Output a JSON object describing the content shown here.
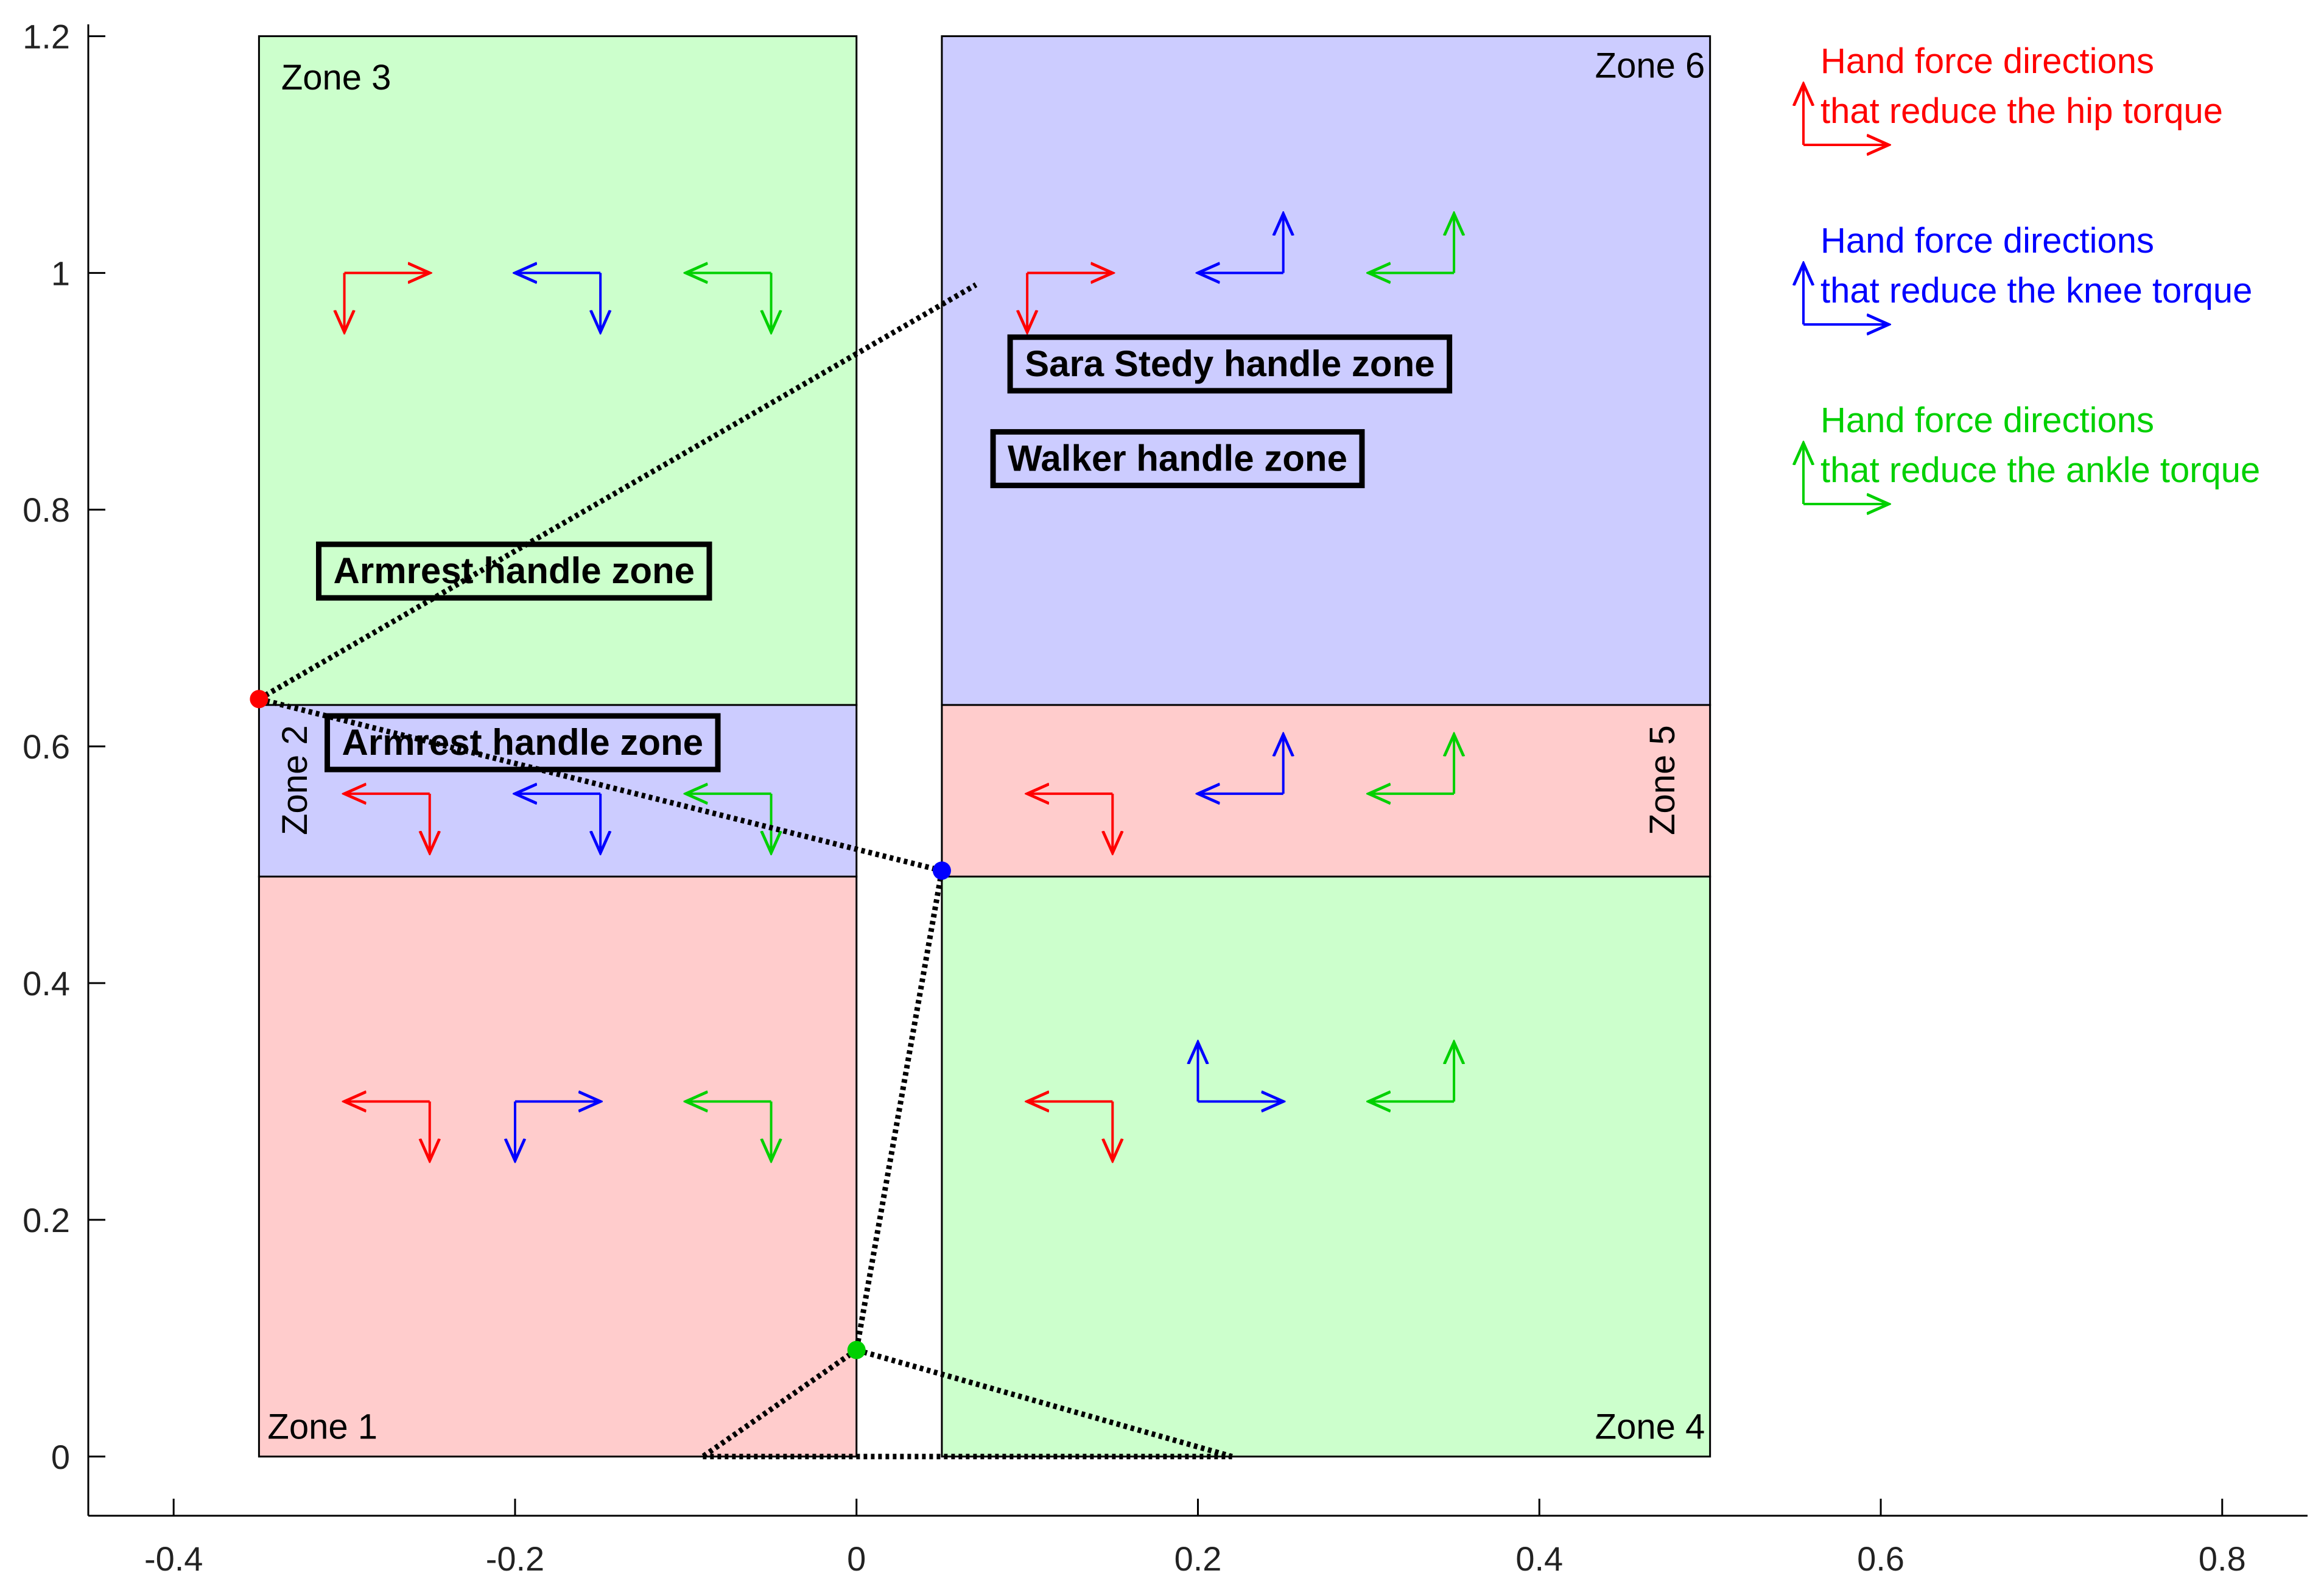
{
  "chart_data": {
    "type": "scatter",
    "xlim": [
      -0.45,
      0.85
    ],
    "ylim": [
      -0.05,
      1.21
    ],
    "x_ticks": [
      -0.4,
      -0.2,
      0,
      0.2,
      0.4,
      0.6,
      0.8
    ],
    "x_tick_labels": [
      "-0.4",
      "-0.2",
      "0",
      "0.2",
      "0.4",
      "0.6",
      "0.8"
    ],
    "y_ticks": [
      0,
      0.2,
      0.4,
      0.6,
      0.8,
      1,
      1.2
    ],
    "y_tick_labels": [
      "0",
      "0.2",
      "0.4",
      "0.6",
      "0.8",
      "1",
      "1.2"
    ],
    "grid": false,
    "colors": {
      "hip": "#ff0000",
      "knee": "#0000ff",
      "ankle": "#00d000",
      "green_fill": "#ccffcc",
      "blue_fill": "#ccccff",
      "red_fill": "#ffcccc"
    },
    "zones": [
      {
        "name": "Zone 1",
        "x": [
          -0.35,
          0.0
        ],
        "y": [
          0.0,
          0.49
        ],
        "fill": "red_fill"
      },
      {
        "name": "Zone 2",
        "x": [
          -0.35,
          0.0
        ],
        "y": [
          0.49,
          0.635
        ],
        "fill": "blue_fill"
      },
      {
        "name": "Zone 3",
        "x": [
          -0.35,
          0.0
        ],
        "y": [
          0.635,
          1.2
        ],
        "fill": "green_fill"
      },
      {
        "name": "Zone 4",
        "x": [
          0.05,
          0.5
        ],
        "y": [
          0.0,
          0.49
        ],
        "fill": "green_fill"
      },
      {
        "name": "Zone 5",
        "x": [
          0.05,
          0.5
        ],
        "y": [
          0.49,
          0.635
        ],
        "fill": "red_fill"
      },
      {
        "name": "Zone 6",
        "x": [
          0.05,
          0.5
        ],
        "y": [
          0.635,
          1.2
        ],
        "fill": "blue_fill"
      }
    ],
    "direction_arrows": [
      {
        "zone": "Zone 3",
        "joint": "hip",
        "origin": [
          -0.3,
          1.0
        ],
        "h": 1,
        "v": -1
      },
      {
        "zone": "Zone 3",
        "joint": "knee",
        "origin": [
          -0.15,
          1.0
        ],
        "h": -1,
        "v": -1
      },
      {
        "zone": "Zone 3",
        "joint": "ankle",
        "origin": [
          -0.05,
          1.0
        ],
        "h": -1,
        "v": -1
      },
      {
        "zone": "Zone 2",
        "joint": "hip",
        "origin": [
          -0.25,
          0.56
        ],
        "h": -1,
        "v": -1
      },
      {
        "zone": "Zone 2",
        "joint": "knee",
        "origin": [
          -0.15,
          0.56
        ],
        "h": -1,
        "v": -1
      },
      {
        "zone": "Zone 2",
        "joint": "ankle",
        "origin": [
          -0.05,
          0.56
        ],
        "h": -1,
        "v": -1
      },
      {
        "zone": "Zone 1",
        "joint": "hip",
        "origin": [
          -0.25,
          0.3
        ],
        "h": -1,
        "v": -1
      },
      {
        "zone": "Zone 1",
        "joint": "knee",
        "origin": [
          -0.2,
          0.3
        ],
        "h": 1,
        "v": -1
      },
      {
        "zone": "Zone 1",
        "joint": "ankle",
        "origin": [
          -0.05,
          0.3
        ],
        "h": -1,
        "v": -1
      },
      {
        "zone": "Zone 6",
        "joint": "hip",
        "origin": [
          0.1,
          1.0
        ],
        "h": 1,
        "v": -1
      },
      {
        "zone": "Zone 6",
        "joint": "knee",
        "origin": [
          0.25,
          1.0
        ],
        "h": -1,
        "v": 1
      },
      {
        "zone": "Zone 6",
        "joint": "ankle",
        "origin": [
          0.35,
          1.0
        ],
        "h": -1,
        "v": 1
      },
      {
        "zone": "Zone 5",
        "joint": "hip",
        "origin": [
          0.15,
          0.56
        ],
        "h": -1,
        "v": -1
      },
      {
        "zone": "Zone 5",
        "joint": "knee",
        "origin": [
          0.25,
          0.56
        ],
        "h": -1,
        "v": 1
      },
      {
        "zone": "Zone 5",
        "joint": "ankle",
        "origin": [
          0.35,
          0.56
        ],
        "h": -1,
        "v": 1
      },
      {
        "zone": "Zone 4",
        "joint": "hip",
        "origin": [
          0.15,
          0.3
        ],
        "h": -1,
        "v": -1
      },
      {
        "zone": "Zone 4",
        "joint": "knee",
        "origin": [
          0.2,
          0.3
        ],
        "h": 1,
        "v": 1
      },
      {
        "zone": "Zone 4",
        "joint": "ankle",
        "origin": [
          0.35,
          0.3
        ],
        "h": -1,
        "v": 1
      }
    ],
    "joints": [
      {
        "joint": "hip",
        "x": -0.35,
        "y": 0.64
      },
      {
        "joint": "knee",
        "x": 0.05,
        "y": 0.495
      },
      {
        "joint": "ankle",
        "x": 0.0,
        "y": 0.09
      }
    ],
    "segments": [
      {
        "from": [
          -0.35,
          0.64
        ],
        "to": [
          0.07,
          0.99
        ]
      },
      {
        "from": [
          -0.35,
          0.64
        ],
        "to": [
          0.05,
          0.495
        ]
      },
      {
        "from": [
          0.05,
          0.495
        ],
        "to": [
          0.0,
          0.09
        ]
      },
      {
        "from": [
          0.0,
          0.09
        ],
        "to": [
          -0.09,
          0.0
        ]
      },
      {
        "from": [
          0.0,
          0.09
        ],
        "to": [
          0.22,
          0.0
        ]
      },
      {
        "from": [
          -0.09,
          0.0
        ],
        "to": [
          0.22,
          0.0
        ]
      }
    ],
    "boxed_labels": [
      {
        "text": "Sara Stedy handle zone",
        "x": 0.09,
        "y": 0.92
      },
      {
        "text": "Walker handle zone",
        "x": 0.08,
        "y": 0.84
      },
      {
        "text": "Armrest handle zone",
        "x": -0.315,
        "y": 0.745
      },
      {
        "text": "Armrest handle zone",
        "x": -0.31,
        "y": 0.6
      }
    ],
    "legend": [
      {
        "joint": "hip",
        "lines": [
          "Hand force directions",
          "that reduce the hip torque"
        ]
      },
      {
        "joint": "knee",
        "lines": [
          "Hand force directions",
          "that reduce the knee torque"
        ]
      },
      {
        "joint": "ankle",
        "lines": [
          "Hand force directions",
          "that reduce the ankle torque"
        ]
      }
    ]
  }
}
